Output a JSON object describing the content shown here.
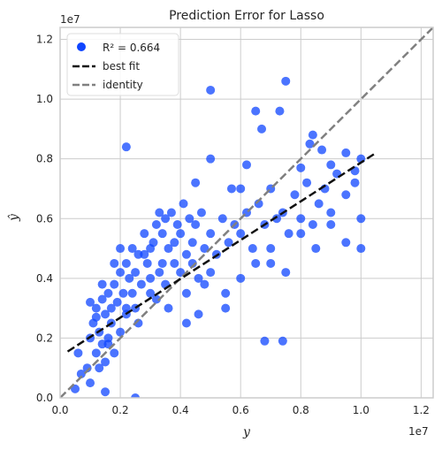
{
  "chart_data": {
    "type": "scatter",
    "title": "Prediction Error for Lasso",
    "xlabel": "y",
    "ylabel": "ŷ",
    "x_offset_label": "1e7",
    "y_offset_label": "1e7",
    "xlim": [
      0,
      1.24
    ],
    "ylim": [
      0,
      1.24
    ],
    "x_ticks": [
      0.0,
      0.2,
      0.4,
      0.6,
      0.8,
      1.0,
      1.2
    ],
    "y_ticks": [
      0.0,
      0.2,
      0.4,
      0.6,
      0.8,
      1.0,
      1.2
    ],
    "x_tick_labels": [
      "0.0",
      "0.2",
      "0.4",
      "0.6",
      "0.8",
      "1.0",
      "1.2"
    ],
    "y_tick_labels": [
      "0.0",
      "0.2",
      "0.4",
      "0.6",
      "0.8",
      "1.0",
      "1.2"
    ],
    "grid": true,
    "legend_position": "top-left",
    "legend": {
      "r2_label": "R² = 0.664",
      "best_fit_label": "best fit",
      "identity_label": "identity"
    },
    "best_fit": {
      "x": [
        0.025,
        1.05
      ],
      "y": [
        0.155,
        0.82
      ]
    },
    "identity": {
      "x": [
        0,
        1.24
      ],
      "y": [
        0,
        1.24
      ]
    },
    "colors": {
      "points": "#0f45ff",
      "best_fit": "#111111",
      "identity": "#808080",
      "grid": "#cccccc",
      "frame": "#cccccc"
    },
    "points": {
      "x": [
        0.05,
        0.06,
        0.07,
        0.09,
        0.1,
        0.1,
        0.11,
        0.12,
        0.12,
        0.13,
        0.13,
        0.14,
        0.14,
        0.15,
        0.15,
        0.16,
        0.16,
        0.17,
        0.17,
        0.18,
        0.18,
        0.19,
        0.2,
        0.2,
        0.21,
        0.22,
        0.22,
        0.23,
        0.24,
        0.25,
        0.25,
        0.26,
        0.27,
        0.28,
        0.29,
        0.3,
        0.3,
        0.31,
        0.32,
        0.33,
        0.34,
        0.35,
        0.35,
        0.36,
        0.37,
        0.38,
        0.39,
        0.4,
        0.41,
        0.42,
        0.43,
        0.44,
        0.45,
        0.46,
        0.47,
        0.48,
        0.5,
        0.52,
        0.54,
        0.56,
        0.58,
        0.6,
        0.62,
        0.64,
        0.66,
        0.68,
        0.7,
        0.72,
        0.74,
        0.76,
        0.78,
        0.8,
        0.82,
        0.84,
        0.86,
        0.88,
        0.9,
        0.92,
        0.95,
        0.98,
        1.0,
        0.1,
        0.12,
        0.14,
        0.16,
        0.18,
        0.2,
        0.22,
        0.24,
        0.26,
        0.28,
        0.3,
        0.32,
        0.34,
        0.36,
        0.38,
        0.4,
        0.42,
        0.44,
        0.46,
        0.48,
        0.5,
        0.55,
        0.6,
        0.65,
        0.7,
        0.75,
        0.8,
        0.85,
        0.9,
        0.95,
        1.0,
        0.22,
        0.5,
        0.65,
        0.67,
        0.73,
        0.75,
        0.84,
        0.8,
        0.87,
        0.9,
        1.0,
        0.25,
        0.15,
        0.55,
        0.42,
        0.68,
        0.74,
        0.6,
        0.95,
        0.98,
        0.7,
        0.83,
        0.57,
        0.5,
        0.45,
        0.62,
        0.33
      ],
      "y": [
        0.03,
        0.15,
        0.08,
        0.1,
        0.2,
        0.05,
        0.25,
        0.15,
        0.3,
        0.1,
        0.22,
        0.33,
        0.18,
        0.28,
        0.12,
        0.35,
        0.2,
        0.3,
        0.25,
        0.38,
        0.15,
        0.32,
        0.42,
        0.22,
        0.35,
        0.45,
        0.28,
        0.4,
        0.5,
        0.3,
        0.42,
        0.48,
        0.38,
        0.55,
        0.45,
        0.5,
        0.35,
        0.52,
        0.58,
        0.42,
        0.55,
        0.6,
        0.38,
        0.5,
        0.62,
        0.45,
        0.58,
        0.55,
        0.65,
        0.48,
        0.6,
        0.52,
        0.58,
        0.4,
        0.62,
        0.5,
        0.55,
        0.48,
        0.6,
        0.52,
        0.58,
        0.55,
        0.62,
        0.5,
        0.65,
        0.58,
        0.7,
        0.6,
        0.62,
        0.55,
        0.68,
        0.6,
        0.72,
        0.58,
        0.65,
        0.7,
        0.62,
        0.75,
        0.68,
        0.72,
        0.6,
        0.32,
        0.27,
        0.38,
        0.18,
        0.45,
        0.5,
        0.3,
        0.35,
        0.25,
        0.48,
        0.4,
        0.33,
        0.45,
        0.3,
        0.52,
        0.42,
        0.35,
        0.45,
        0.28,
        0.38,
        0.42,
        0.35,
        0.4,
        0.45,
        0.5,
        0.42,
        0.55,
        0.5,
        0.58,
        0.52,
        0.5,
        0.84,
        1.03,
        0.96,
        0.9,
        0.96,
        1.06,
        0.88,
        0.77,
        0.83,
        0.78,
        0.8,
        0.0,
        0.02,
        0.3,
        0.25,
        0.19,
        0.19,
        0.7,
        0.82,
        0.76,
        0.45,
        0.85,
        0.7,
        0.8,
        0.72,
        0.78,
        0.62
      ]
    }
  }
}
